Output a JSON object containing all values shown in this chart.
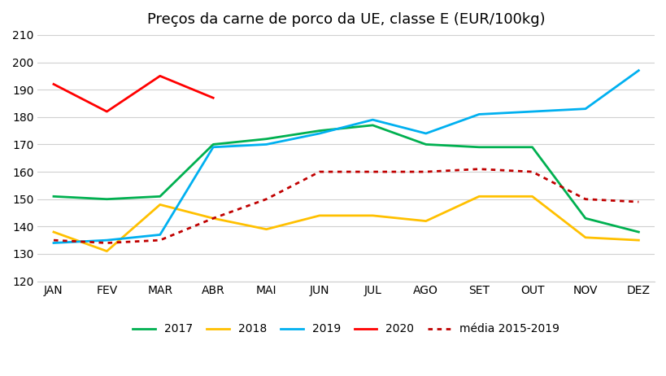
{
  "title": "Preços da carne de porco da UE, classe E (EUR/100kg)",
  "months": [
    "JAN",
    "FEV",
    "MAR",
    "ABR",
    "MAI",
    "JUN",
    "JUL",
    "AGO",
    "SET",
    "OUT",
    "NOV",
    "DEZ"
  ],
  "series_2017": [
    151,
    150,
    151,
    170,
    172,
    175,
    177,
    170,
    169,
    169,
    143,
    138
  ],
  "series_2018": [
    138,
    131,
    148,
    143,
    139,
    144,
    144,
    142,
    151,
    151,
    136,
    135
  ],
  "series_2019": [
    134,
    135,
    137,
    169,
    170,
    174,
    179,
    174,
    181,
    182,
    183,
    197
  ],
  "series_2020": [
    192,
    182,
    195,
    187,
    null,
    null,
    null,
    null,
    null,
    null,
    null,
    null
  ],
  "series_media": [
    135,
    134,
    135,
    143,
    150,
    160,
    160,
    160,
    161,
    160,
    150,
    149
  ],
  "color_2017": "#00b050",
  "color_2018": "#ffc000",
  "color_2019": "#00b0f0",
  "color_2020": "#ff0000",
  "color_media": "#c00000",
  "ylim": [
    120,
    210
  ],
  "yticks": [
    120,
    130,
    140,
    150,
    160,
    170,
    180,
    190,
    200,
    210
  ],
  "background_color": "#ffffff",
  "grid_color": "#d0d0d0",
  "title_fontsize": 13,
  "tick_fontsize": 10,
  "legend_fontsize": 10
}
